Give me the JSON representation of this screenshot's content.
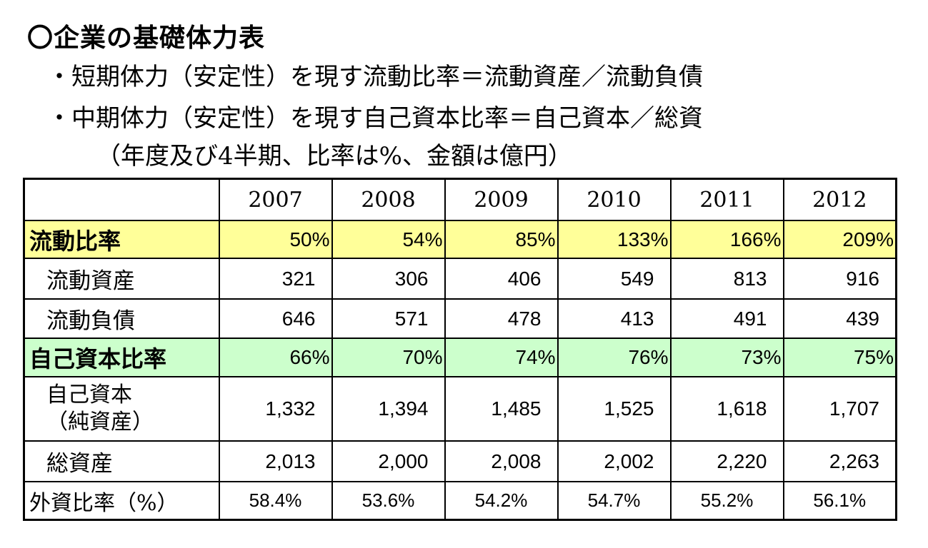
{
  "title": "〇企業の基礎体力表",
  "bullets": [
    "・短期体力（安定性）を現す流動比率＝流動資産／流動負債",
    "・中期体力（安定性）を現す自己資本比率＝自己資本／総資"
  ],
  "note": "（年度及び4半期、比率は%、金額は億円）",
  "table": {
    "years": [
      "2007",
      "2008",
      "2009",
      "2010",
      "2011",
      "2012"
    ],
    "rows": {
      "current_ratio": {
        "label": "流動比率",
        "values": [
          "50%",
          "54%",
          "85%",
          "133%",
          "166%",
          "209%"
        ],
        "highlight": "#ffff99"
      },
      "current_assets": {
        "label": "流動資産",
        "values": [
          "321",
          "306",
          "406",
          "549",
          "813",
          "916"
        ]
      },
      "current_liabilities": {
        "label": "流動負債",
        "values": [
          "646",
          "571",
          "478",
          "413",
          "491",
          "439"
        ]
      },
      "equity_ratio": {
        "label": "自己資本比率",
        "values": [
          "66%",
          "70%",
          "74%",
          "76%",
          "73%",
          "75%"
        ],
        "highlight": "#ccffcc"
      },
      "equity": {
        "label_line1": "自己資本",
        "label_line2": "（純資産）",
        "values": [
          "1,332",
          "1,394",
          "1,485",
          "1,525",
          "1,618",
          "1,707"
        ]
      },
      "total_assets": {
        "label": "総資産",
        "values": [
          "2,013",
          "2,000",
          "2,008",
          "2,002",
          "2,220",
          "2,263"
        ]
      },
      "foreign_ratio": {
        "label": "外資比率（%）",
        "values": [
          "58.4%",
          "53.6%",
          "54.2%",
          "54.7%",
          "55.2%",
          "56.1%"
        ]
      }
    }
  }
}
